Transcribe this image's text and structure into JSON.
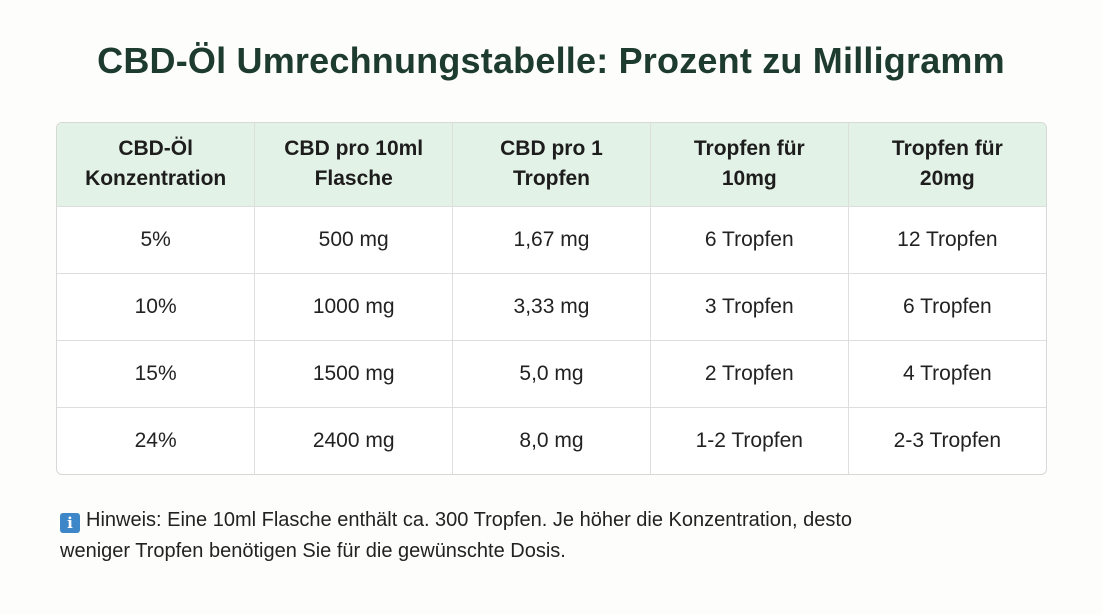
{
  "title": "CBD-Öl Umrechnungstabelle: Prozent zu Milligramm",
  "table": {
    "headers": [
      [
        "CBD-Öl",
        "Konzentration"
      ],
      [
        "CBD pro 10ml",
        "Flasche"
      ],
      [
        "CBD pro 1",
        "Tropfen"
      ],
      [
        "Tropfen für",
        "10mg"
      ],
      [
        "Tropfen für",
        "20mg"
      ]
    ],
    "rows": [
      [
        "5%",
        "500 mg",
        "1,67 mg",
        "6 Tropfen",
        "12 Tropfen"
      ],
      [
        "10%",
        "1000 mg",
        "3,33 mg",
        "3 Tropfen",
        "6 Tropfen"
      ],
      [
        "15%",
        "1500 mg",
        "5,0 mg",
        "2 Tropfen",
        "4 Tropfen"
      ],
      [
        "24%",
        "2400 mg",
        "8,0 mg",
        "1-2 Tropfen",
        "2-3 Tropfen"
      ]
    ]
  },
  "note": {
    "icon": "info-icon",
    "icon_glyph": "i",
    "text_line1": "Hinweis: Eine 10ml Flasche enthält ca. 300 Tropfen. Je höher die Konzentration, desto",
    "text_line2": "weniger Tropfen benötigen Sie für die gewünschte Dosis."
  },
  "colors": {
    "title": "#1e3b2f",
    "header_bg": "#e3f2e6",
    "info_icon": "#3d87c8"
  }
}
